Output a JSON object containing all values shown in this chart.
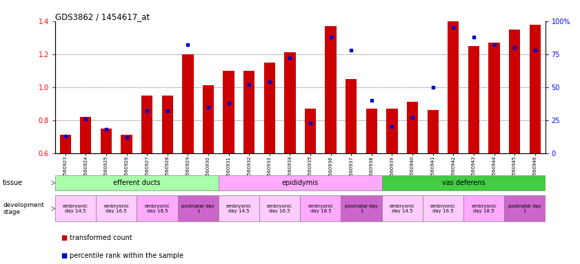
{
  "title": "GDS3862 / 1454617_at",
  "samples": [
    "GSM560923",
    "GSM560924",
    "GSM560925",
    "GSM560926",
    "GSM560927",
    "GSM560928",
    "GSM560929",
    "GSM560930",
    "GSM560931",
    "GSM560932",
    "GSM560933",
    "GSM560934",
    "GSM560935",
    "GSM560936",
    "GSM560937",
    "GSM560938",
    "GSM560939",
    "GSM560940",
    "GSM560941",
    "GSM560942",
    "GSM560943",
    "GSM560944",
    "GSM560945",
    "GSM560946"
  ],
  "bar_values": [
    0.71,
    0.82,
    0.75,
    0.71,
    0.95,
    0.95,
    1.2,
    1.01,
    1.1,
    1.1,
    1.15,
    1.21,
    0.87,
    1.37,
    1.05,
    0.87,
    0.87,
    0.91,
    0.86,
    1.4,
    1.25,
    1.27,
    1.35,
    1.38
  ],
  "percentile_values": [
    13,
    26,
    18,
    12,
    32,
    32,
    82,
    35,
    38,
    52,
    54,
    72,
    23,
    88,
    78,
    40,
    20,
    27,
    50,
    95,
    88,
    82,
    80,
    78
  ],
  "ylim_left": [
    0.6,
    1.4
  ],
  "ylim_right": [
    0,
    100
  ],
  "bar_color": "#cc0000",
  "dot_color": "#0000cc",
  "tissue_groups": [
    {
      "label": "efferent ducts",
      "start": 0,
      "end": 8,
      "color": "#aaffaa"
    },
    {
      "label": "epididymis",
      "start": 8,
      "end": 16,
      "color": "#ffaaff"
    },
    {
      "label": "vas deferens",
      "start": 16,
      "end": 24,
      "color": "#44cc44"
    }
  ],
  "dev_stage_groups": [
    {
      "label": "embryonic\nday 14.5",
      "start": 0,
      "end": 2,
      "color": "#ffccff"
    },
    {
      "label": "embryonic\nday 16.5",
      "start": 2,
      "end": 4,
      "color": "#ffccff"
    },
    {
      "label": "embryonic\nday 18.5",
      "start": 4,
      "end": 6,
      "color": "#ffaaff"
    },
    {
      "label": "postnatal day\n1",
      "start": 6,
      "end": 8,
      "color": "#cc66cc"
    },
    {
      "label": "embryonic\nday 14.5",
      "start": 8,
      "end": 10,
      "color": "#ffccff"
    },
    {
      "label": "embryonic\nday 16.5",
      "start": 10,
      "end": 12,
      "color": "#ffccff"
    },
    {
      "label": "embryonic\nday 18.5",
      "start": 12,
      "end": 14,
      "color": "#ffaaff"
    },
    {
      "label": "postnatal day\n1",
      "start": 14,
      "end": 16,
      "color": "#cc66cc"
    },
    {
      "label": "embryonic\nday 14.5",
      "start": 16,
      "end": 18,
      "color": "#ffccff"
    },
    {
      "label": "embryonic\nday 16.5",
      "start": 18,
      "end": 20,
      "color": "#ffccff"
    },
    {
      "label": "embryonic\nday 18.5",
      "start": 20,
      "end": 22,
      "color": "#ffaaff"
    },
    {
      "label": "postnatal day\n1",
      "start": 22,
      "end": 24,
      "color": "#cc66cc"
    }
  ],
  "legend_items": [
    {
      "label": "transformed count",
      "color": "#cc0000"
    },
    {
      "label": "percentile rank within the sample",
      "color": "#0000cc"
    }
  ]
}
